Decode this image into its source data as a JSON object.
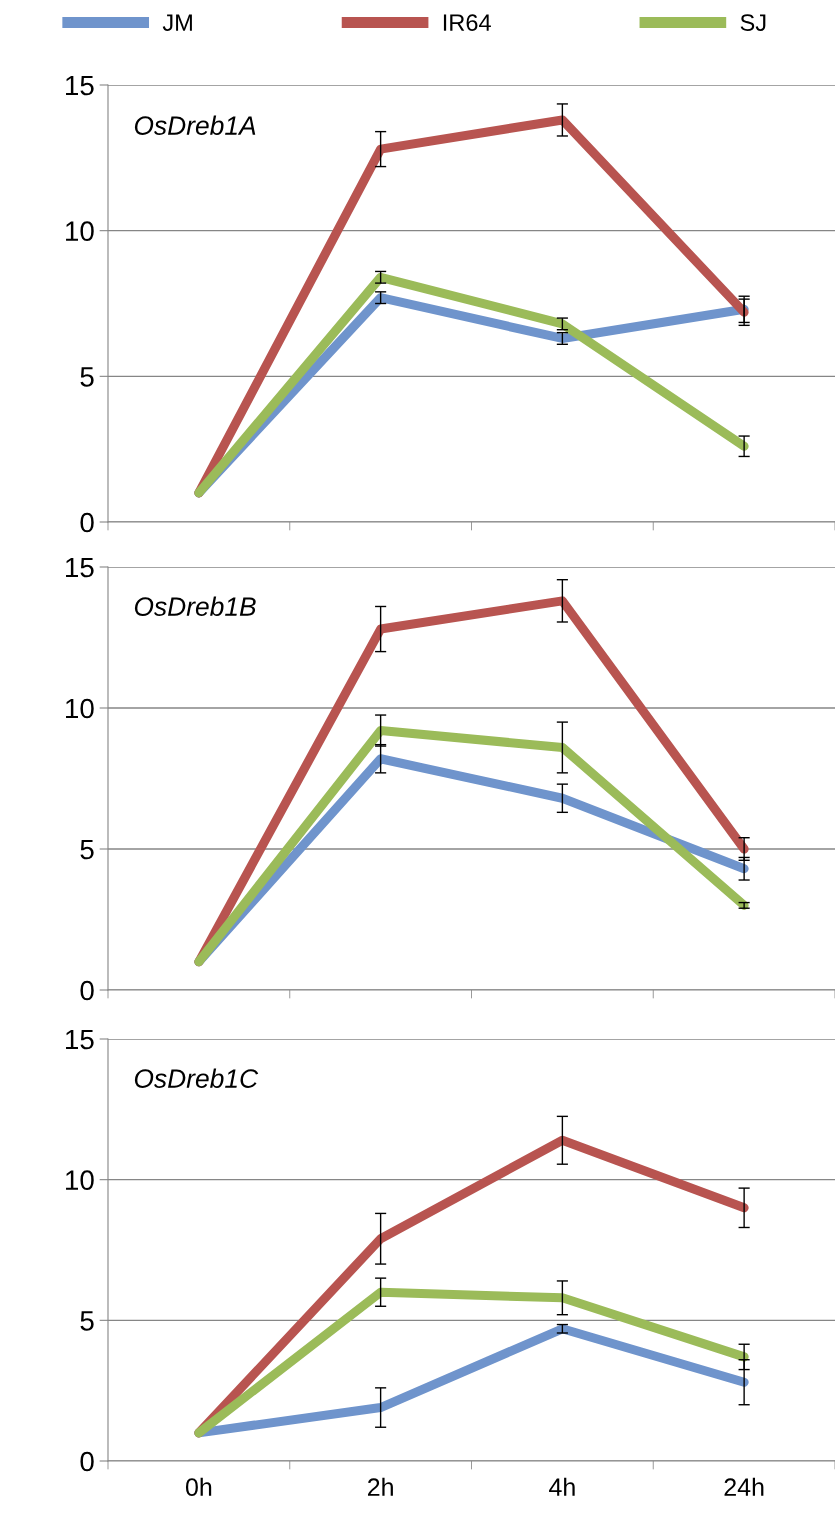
{
  "chart_data": [
    {
      "type": "line",
      "categories": [
        null,
        null,
        null,
        null
      ],
      "ylim": [
        0,
        15
      ],
      "yticks": [
        0,
        5,
        10,
        15
      ],
      "grid": "y",
      "legend": "top",
      "tick_labels": "y",
      "marker": "none",
      "line_style": "solid",
      "annotations": [
        "OsDreb1A"
      ],
      "series": [
        {
          "name": "JM",
          "color": "#6f94cc",
          "values": [
            1,
            7.7,
            6.3,
            7.3
          ],
          "errors": [
            null,
            0.2,
            0.2,
            0.45
          ]
        },
        {
          "name": "IR64",
          "color": "#b85450",
          "values": [
            1,
            12.8,
            13.8,
            7.2
          ],
          "errors": [
            null,
            0.6,
            0.55,
            0.45
          ]
        },
        {
          "name": "SJ",
          "color": "#9bbb59",
          "values": [
            1,
            8.4,
            6.8,
            2.6
          ],
          "errors": [
            null,
            0.2,
            0.2,
            0.35
          ]
        }
      ]
    },
    {
      "type": "line",
      "categories": [
        null,
        null,
        null,
        null
      ],
      "ylim": [
        0,
        15
      ],
      "yticks": [
        0,
        5,
        10,
        15
      ],
      "grid": "y",
      "tick_labels": "y",
      "marker": "none",
      "line_style": "solid",
      "annotations": [
        "OsDreb1B"
      ],
      "series": [
        {
          "color": "#6f94cc",
          "values": [
            1,
            8.2,
            6.8,
            4.3
          ],
          "errors": [
            null,
            0.5,
            0.5,
            0.4
          ]
        },
        {
          "color": "#b85450",
          "values": [
            1,
            12.8,
            13.8,
            5.0
          ],
          "errors": [
            null,
            0.8,
            0.75,
            0.4
          ]
        },
        {
          "color": "#9bbb59",
          "values": [
            1,
            9.2,
            8.6,
            3.0
          ],
          "errors": [
            null,
            0.55,
            0.9,
            0.1
          ]
        }
      ]
    },
    {
      "type": "line",
      "categories": [
        "0h",
        "2h",
        "4h",
        "24h"
      ],
      "ylim": [
        0,
        15
      ],
      "yticks": [
        0,
        5,
        10,
        15
      ],
      "grid": "y",
      "marker": "none",
      "line_style": "solid",
      "annotations": [
        "OsDreb1C"
      ],
      "series": [
        {
          "color": "#6f94cc",
          "values": [
            1,
            1.9,
            4.7,
            2.8
          ],
          "errors": [
            null,
            0.7,
            0.15,
            0.8
          ]
        },
        {
          "color": "#b85450",
          "values": [
            1,
            7.9,
            11.4,
            9.0
          ],
          "errors": [
            null,
            0.9,
            0.85,
            0.7
          ]
        },
        {
          "color": "#9bbb59",
          "values": [
            1,
            6.0,
            5.8,
            3.7
          ],
          "errors": [
            null,
            0.5,
            0.6,
            0.45
          ]
        }
      ]
    }
  ]
}
